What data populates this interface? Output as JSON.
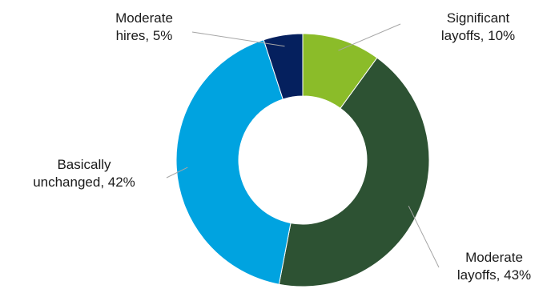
{
  "chart_data": {
    "type": "donut",
    "title": "",
    "categories": [
      "Significant layoffs",
      "Moderate layoffs",
      "Basically unchanged",
      "Moderate hires"
    ],
    "values": [
      10,
      43,
      42,
      5
    ],
    "unit": "%",
    "colors": [
      "#8bbc29",
      "#2d5233",
      "#00a3e0",
      "#05205e"
    ],
    "labels": [
      {
        "lines": [
          "Significant",
          "layoffs, 10%"
        ]
      },
      {
        "lines": [
          "Moderate",
          "layoffs, 43%"
        ]
      },
      {
        "lines": [
          "Basically",
          "unchanged, 42%"
        ]
      },
      {
        "lines": [
          "Moderate",
          "hires, 5%"
        ]
      }
    ],
    "legend": "none",
    "start_angle": "12 o'clock, clockwise"
  }
}
